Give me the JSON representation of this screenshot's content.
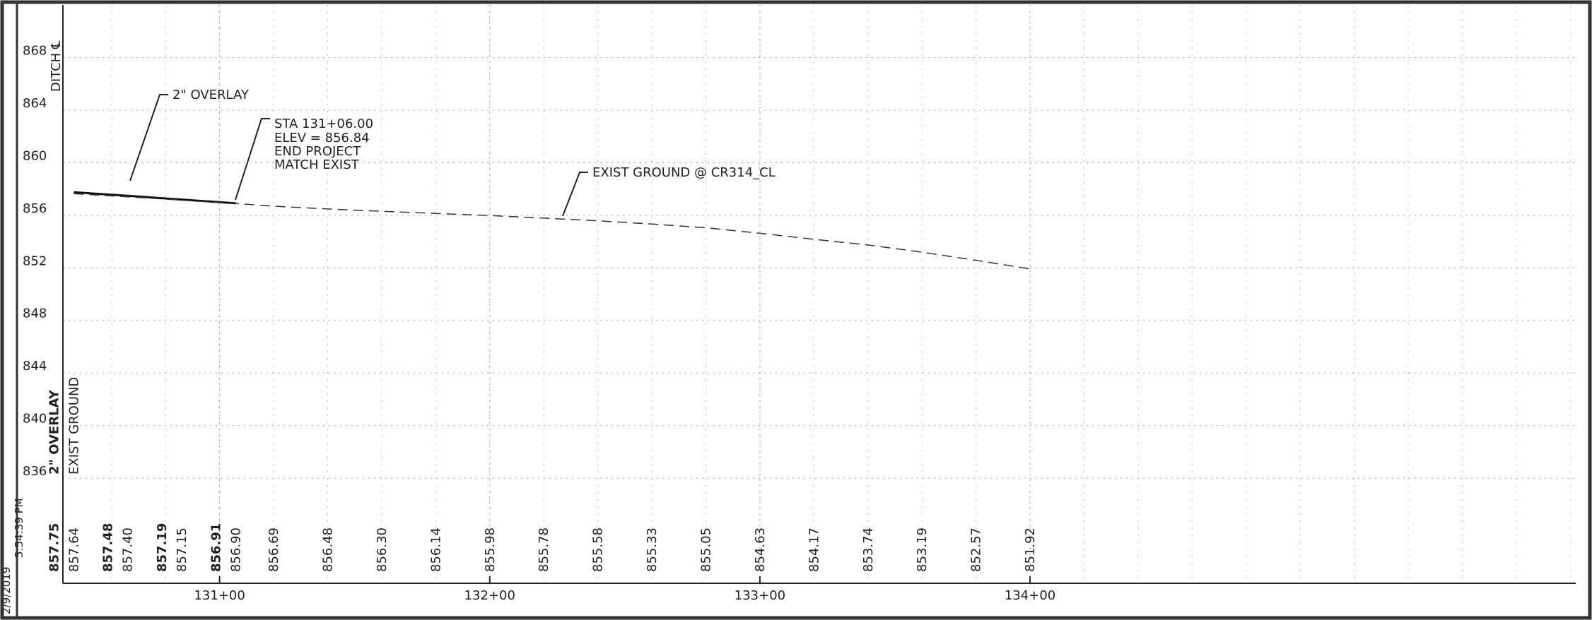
{
  "chart_data": {
    "type": "line",
    "x_label_ditch": "DITCH ℄",
    "x": [
      13046,
      13066,
      13086,
      13106,
      13120,
      13140,
      13160,
      13180,
      13200,
      13220,
      13240,
      13260,
      13280,
      13300,
      13320,
      13340,
      13360,
      13380,
      13400
    ],
    "series": [
      {
        "name": "2\" OVERLAY",
        "color": "#111111",
        "style": "solid",
        "values": [
          857.75,
          857.48,
          857.19,
          856.91,
          null,
          null,
          null,
          null,
          null,
          null,
          null,
          null,
          null,
          null,
          null,
          null,
          null,
          null,
          null
        ],
        "value_labels": [
          "857.75",
          "857.48",
          "857.19",
          "856.91",
          null,
          null,
          null,
          null,
          null,
          null,
          null,
          null,
          null,
          null,
          null,
          null,
          null,
          null,
          null
        ]
      },
      {
        "name": "EXIST GROUND",
        "color": "#333333",
        "style": "dashed",
        "values": [
          857.64,
          857.4,
          857.15,
          856.9,
          856.69,
          856.48,
          856.3,
          856.14,
          855.98,
          855.78,
          855.58,
          855.33,
          855.05,
          854.63,
          854.17,
          853.74,
          853.19,
          852.57,
          851.92
        ],
        "value_labels": [
          "857.64",
          "857.40",
          "857.15",
          "856.90",
          "856.69",
          "856.48",
          "856.30",
          "856.14",
          "855.98",
          "855.78",
          "855.58",
          "855.33",
          "855.05",
          "854.63",
          "854.17",
          "853.74",
          "853.19",
          "852.57",
          "851.92"
        ]
      }
    ],
    "xlim": [
      13042,
      13602
    ],
    "xticks": [
      {
        "value": 13100,
        "label": "131+00"
      },
      {
        "value": 13200,
        "label": "132+00"
      },
      {
        "value": 13300,
        "label": "133+00"
      },
      {
        "value": 13400,
        "label": "134+00"
      }
    ],
    "ylim": [
      828,
      872
    ],
    "yticks": [
      836,
      840,
      844,
      848,
      852,
      856,
      860,
      864,
      868
    ],
    "grid": true,
    "annotations": [
      "2\" OVERLAY",
      "STA 131+06.00",
      "ELEV = 856.84",
      "END PROJECT",
      "MATCH EXIST",
      "EXIST GROUND @ CR314_CL"
    ]
  },
  "plot_stamp": [
    "2/9/2019",
    "5:54:39 PM"
  ]
}
